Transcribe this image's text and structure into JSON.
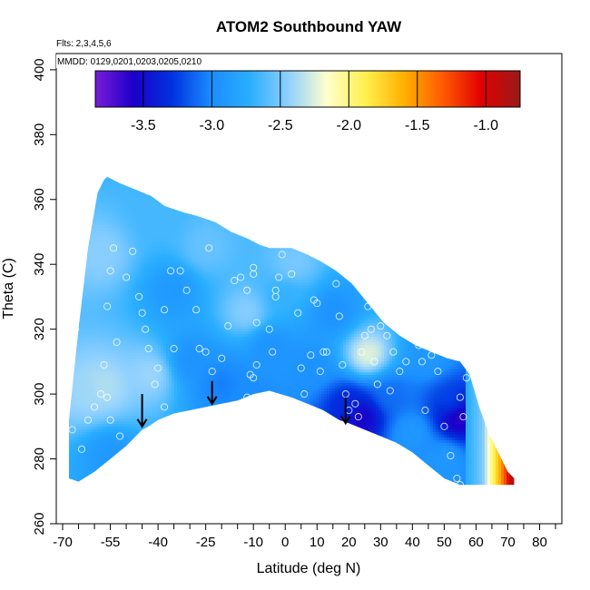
{
  "chart_data": {
    "type": "heatmap",
    "title": "ATOM2 Southbound YAW",
    "annotations": {
      "flights": "Flts: 2,3,4,5,6",
      "dates": "MMDD: 0129,0201,0203,0205,0210"
    },
    "xlabel": "Latitude (deg N)",
    "ylabel": "Theta (C)",
    "xlim": [
      -72,
      87
    ],
    "ylim": [
      260,
      405
    ],
    "x_ticks": [
      -70,
      -55,
      -40,
      -25,
      -10,
      0,
      10,
      20,
      30,
      40,
      50,
      60,
      70,
      80
    ],
    "x_minor_ticks": [
      -65,
      -60,
      -50,
      -45,
      -35,
      -30,
      -20,
      -15,
      -5,
      5,
      15,
      25,
      35,
      45,
      55,
      65,
      75,
      85
    ],
    "y_ticks": [
      260,
      280,
      300,
      320,
      340,
      360,
      380,
      400
    ],
    "colorbar": {
      "range": [
        -3.85,
        -0.75
      ],
      "ticks": [
        -3.5,
        -3.0,
        -2.5,
        -2.0,
        -1.5,
        -1.0
      ],
      "colors": [
        "#7a1bd9",
        "#1a00c8",
        "#0033e0",
        "#1a8cff",
        "#2aaeff",
        "#8fd0ff",
        "#ffffcc",
        "#fff04d",
        "#ffb000",
        "#ff5a00",
        "#e00000",
        "#991a1a"
      ]
    },
    "field_boundary": {
      "lat": [
        -68,
        -68,
        -65,
        -62,
        -59,
        -57,
        -56,
        -52,
        -47,
        -42,
        -38,
        -32,
        -28,
        -22,
        -17,
        -12,
        -8,
        -5,
        -2,
        2,
        7,
        11,
        16,
        21,
        26,
        31,
        36,
        41,
        46,
        51,
        55,
        58,
        61,
        64,
        67,
        70,
        72,
        72,
        58,
        55,
        50,
        45,
        40,
        35,
        30,
        25,
        20,
        17,
        12,
        7,
        2,
        -5,
        -10,
        -15,
        -20,
        -25,
        -30,
        -35,
        -40,
        -43,
        -45,
        -50,
        -55,
        -60,
        -65,
        -68
      ],
      "theta": [
        274,
        292,
        320,
        345,
        362,
        366,
        367,
        365,
        363,
        361,
        358,
        356,
        355,
        353,
        350,
        348,
        346,
        345,
        345,
        345,
        343,
        341,
        338,
        334,
        328,
        322,
        318,
        315,
        313,
        311,
        310,
        306,
        296,
        288,
        282,
        276,
        274,
        272,
        272,
        272,
        274,
        278,
        282,
        285,
        287,
        289,
        291,
        292,
        295,
        297,
        299,
        301,
        300,
        298,
        297,
        296,
        295,
        294,
        292,
        290,
        289,
        284,
        280,
        276,
        273,
        274
      ]
    },
    "field_values": {
      "background": -2.75,
      "features": [
        {
          "lat": 24,
          "theta": 293,
          "value": -3.6
        },
        {
          "lat": 20,
          "theta": 297,
          "value": -3.35
        },
        {
          "lat": 54,
          "theta": 293,
          "value": -3.7
        },
        {
          "lat": 52,
          "theta": 297,
          "value": -3.2
        },
        {
          "lat": 33,
          "theta": 300,
          "value": -3.1
        },
        {
          "lat": 26,
          "theta": 312,
          "value": -2.2
        },
        {
          "lat": -42,
          "theta": 306,
          "value": -2.4
        },
        {
          "lat": -57,
          "theta": 302,
          "value": -2.35
        },
        {
          "lat": -62,
          "theta": 300,
          "value": -2.4
        },
        {
          "lat": -58,
          "theta": 343,
          "value": -2.45
        },
        {
          "lat": -12,
          "theta": 325,
          "value": -2.45
        },
        {
          "lat": 3,
          "theta": 340,
          "value": -2.5
        },
        {
          "lat": -25,
          "theta": 345,
          "value": -2.55
        },
        {
          "lat": -35,
          "theta": 332,
          "value": -2.9
        },
        {
          "lat": -30,
          "theta": 310,
          "value": -2.95
        },
        {
          "lat": -12,
          "theta": 298,
          "value": -3.0
        },
        {
          "lat": -5,
          "theta": 315,
          "value": -2.95
        },
        {
          "lat": 15,
          "theta": 325,
          "value": -2.95
        },
        {
          "lat": 40,
          "theta": 288,
          "value": -2.9
        },
        {
          "lat": 50,
          "theta": 280,
          "value": -2.9
        },
        {
          "lat": 45,
          "theta": 312,
          "value": -2.9
        },
        {
          "lat": -55,
          "theta": 282,
          "value": -2.9
        },
        {
          "lat": -20,
          "theta": 303,
          "value": -3.05
        },
        {
          "lat": 8,
          "theta": 308,
          "value": -2.95
        },
        {
          "lat": 0,
          "theta": 330,
          "value": -2.7
        },
        {
          "lat": -40,
          "theta": 355,
          "value": -2.65
        }
      ],
      "edge_gradient": {
        "lat_start": 57,
        "lat_end": 72,
        "stops": [
          [
            57,
            -2.75
          ],
          [
            62,
            -2.5
          ],
          [
            65,
            -2.0
          ],
          [
            67.5,
            -1.6
          ],
          [
            69.5,
            -1.2
          ],
          [
            71,
            -0.9
          ],
          [
            72,
            -0.8
          ]
        ]
      }
    },
    "observation_points": [
      [
        -67,
        289
      ],
      [
        -64,
        283
      ],
      [
        -62,
        292
      ],
      [
        -60,
        296
      ],
      [
        -58,
        300
      ],
      [
        -56,
        299
      ],
      [
        -55,
        292
      ],
      [
        -52,
        287
      ],
      [
        -57,
        309
      ],
      [
        -53,
        316
      ],
      [
        -56,
        327
      ],
      [
        -54,
        345
      ],
      [
        -50,
        336
      ],
      [
        -55,
        338
      ],
      [
        -46,
        330
      ],
      [
        -45,
        325
      ],
      [
        -44,
        320
      ],
      [
        -43,
        314
      ],
      [
        -40,
        308
      ],
      [
        -41,
        303
      ],
      [
        -38,
        296
      ],
      [
        -35,
        314
      ],
      [
        -38,
        326
      ],
      [
        -36,
        338
      ],
      [
        -33,
        338
      ],
      [
        -31,
        332
      ],
      [
        -28,
        326
      ],
      [
        -27,
        314
      ],
      [
        -25,
        313
      ],
      [
        -23,
        307
      ],
      [
        -20,
        311
      ],
      [
        -18,
        321
      ],
      [
        -24,
        345
      ],
      [
        -16,
        335
      ],
      [
        -14,
        336
      ],
      [
        -12,
        332
      ],
      [
        -10,
        305
      ],
      [
        -11,
        306
      ],
      [
        -12,
        299
      ],
      [
        -9,
        322
      ],
      [
        -9,
        309
      ],
      [
        -10,
        337
      ],
      [
        -10,
        339
      ],
      [
        -9,
        351
      ],
      [
        -8,
        350
      ],
      [
        -5,
        320
      ],
      [
        -4,
        313
      ],
      [
        -3,
        332
      ],
      [
        -2,
        336
      ],
      [
        -1,
        343
      ],
      [
        0,
        348
      ],
      [
        1,
        349
      ],
      [
        2,
        337
      ],
      [
        4,
        325
      ],
      [
        5,
        308
      ],
      [
        6,
        300
      ],
      [
        8,
        312
      ],
      [
        9,
        329
      ],
      [
        10,
        328
      ],
      [
        12,
        313
      ],
      [
        13,
        313
      ],
      [
        14,
        349
      ],
      [
        15,
        348
      ],
      [
        16,
        334
      ],
      [
        17,
        324
      ],
      [
        18,
        309
      ],
      [
        19,
        300
      ],
      [
        20,
        295
      ],
      [
        22,
        297
      ],
      [
        23,
        293
      ],
      [
        24,
        313
      ],
      [
        25,
        318
      ],
      [
        26,
        327
      ],
      [
        27,
        320
      ],
      [
        28,
        310
      ],
      [
        29,
        303
      ],
      [
        30,
        321
      ],
      [
        32,
        318
      ],
      [
        33,
        301
      ],
      [
        34,
        313
      ],
      [
        36,
        307
      ],
      [
        38,
        310
      ],
      [
        40,
        324
      ],
      [
        42,
        315
      ],
      [
        44,
        295
      ],
      [
        46,
        312
      ],
      [
        48,
        307
      ],
      [
        50,
        290
      ],
      [
        52,
        281
      ],
      [
        54,
        274
      ],
      [
        55,
        299
      ],
      [
        56,
        293
      ],
      [
        57,
        305
      ],
      [
        57,
        312
      ],
      [
        58,
        318
      ],
      [
        -66,
        320
      ],
      [
        -48,
        344
      ],
      [
        -3,
        330
      ],
      [
        11,
        307
      ],
      [
        43,
        310
      ],
      [
        55,
        272
      ]
    ],
    "arrows": [
      {
        "lat": -45,
        "theta_from": 300,
        "theta_to": 290
      },
      {
        "lat": -23,
        "theta_from": 304,
        "theta_to": 297
      },
      {
        "lat": 19,
        "theta_from": 299,
        "theta_to": 291
      }
    ]
  }
}
